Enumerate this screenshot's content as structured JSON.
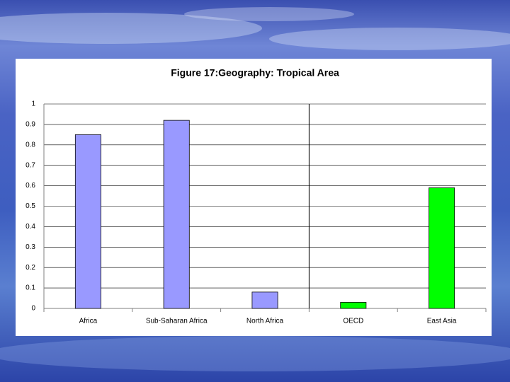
{
  "chart_data": {
    "type": "bar",
    "title": "Figure 17:Geography: Tropical Area",
    "categories": [
      "Africa",
      "Sub-Saharan Africa",
      "North Africa",
      "OECD",
      "East Asia"
    ],
    "values": [
      0.85,
      0.92,
      0.08,
      0.03,
      0.59
    ],
    "colors": [
      "#9999ff",
      "#9999ff",
      "#9999ff",
      "#00ff00",
      "#00ff00"
    ],
    "ylim": [
      0,
      1
    ],
    "yticks": [
      0,
      0.1,
      0.2,
      0.3,
      0.4,
      0.5,
      0.6,
      0.7,
      0.8,
      0.9,
      1
    ],
    "grid": true
  }
}
